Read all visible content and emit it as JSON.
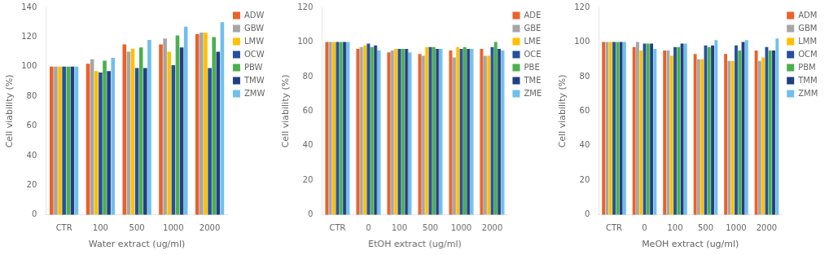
{
  "chart_data": [
    {
      "type": "bar",
      "xlabel": "Water extract (ug/ml)",
      "ylabel": "Cell viability (%)",
      "categories": [
        "CTR",
        "100",
        "500",
        "1000",
        "2000"
      ],
      "series": [
        {
          "name": "ADW",
          "color": "#E8622A",
          "values": [
            100,
            102,
            115,
            115,
            122
          ]
        },
        {
          "name": "GBW",
          "color": "#A6A6A6",
          "values": [
            100,
            105,
            110,
            119,
            123
          ]
        },
        {
          "name": "LMW",
          "color": "#FFC000",
          "values": [
            100,
            97,
            112,
            110,
            123
          ]
        },
        {
          "name": "OCW",
          "color": "#264F9C",
          "values": [
            100,
            96,
            99,
            101,
            99
          ]
        },
        {
          "name": "PBW",
          "color": "#4BAF4E",
          "values": [
            100,
            104,
            113,
            121,
            120
          ]
        },
        {
          "name": "TMW",
          "color": "#1F3F80",
          "values": [
            100,
            97,
            99,
            113,
            110
          ]
        },
        {
          "name": "ZMW",
          "color": "#70BFED",
          "values": [
            100,
            106,
            118,
            127,
            130
          ]
        }
      ],
      "ylim": [
        0,
        140
      ],
      "yticks": [
        0,
        20,
        40,
        60,
        80,
        100,
        120,
        140
      ],
      "grid": false,
      "legend": "right"
    },
    {
      "type": "bar",
      "xlabel": "EtOH extract (ug/ml)",
      "ylabel": "Cell viability (%)",
      "categories": [
        "CTR",
        "0",
        "100",
        "500",
        "1000",
        "2000"
      ],
      "series": [
        {
          "name": "ADE",
          "color": "#E8622A",
          "values": [
            100,
            96,
            94,
            93,
            95,
            96
          ]
        },
        {
          "name": "GBE",
          "color": "#A6A6A6",
          "values": [
            100,
            97,
            95,
            92,
            91,
            92
          ]
        },
        {
          "name": "LME",
          "color": "#FFC000",
          "values": [
            100,
            98,
            96,
            97,
            97,
            92
          ]
        },
        {
          "name": "OCE",
          "color": "#264F9C",
          "values": [
            100,
            99,
            96,
            97,
            96,
            97
          ]
        },
        {
          "name": "PBE",
          "color": "#4BAF4E",
          "values": [
            100,
            97,
            96,
            97,
            97,
            100
          ]
        },
        {
          "name": "TME",
          "color": "#1F3F80",
          "values": [
            100,
            98,
            96,
            96,
            96,
            96
          ]
        },
        {
          "name": "ZME",
          "color": "#70BFED",
          "values": [
            100,
            95,
            94,
            96,
            96,
            95
          ]
        }
      ],
      "ylim": [
        0,
        120
      ],
      "yticks": [
        0,
        20,
        40,
        60,
        80,
        100,
        120
      ],
      "grid": false,
      "legend": "right"
    },
    {
      "type": "bar",
      "xlabel": "MeOH extract (ug/ml)",
      "ylabel": "Cell viability (%)",
      "categories": [
        "CTR",
        "0",
        "100",
        "500",
        "1000",
        "2000"
      ],
      "series": [
        {
          "name": "ADM",
          "color": "#E8622A",
          "values": [
            100,
            97,
            95,
            93,
            93,
            95
          ]
        },
        {
          "name": "GBM",
          "color": "#A6A6A6",
          "values": [
            100,
            100,
            95,
            90,
            89,
            89
          ]
        },
        {
          "name": "LMM",
          "color": "#FFC000",
          "values": [
            100,
            95,
            92,
            90,
            89,
            91
          ]
        },
        {
          "name": "OCM",
          "color": "#264F9C",
          "values": [
            100,
            99,
            97,
            98,
            98,
            97
          ]
        },
        {
          "name": "PBM",
          "color": "#4BAF4E",
          "values": [
            100,
            99,
            97,
            97,
            95,
            95
          ]
        },
        {
          "name": "TMM",
          "color": "#1F3F80",
          "values": [
            100,
            99,
            99,
            98,
            100,
            95
          ]
        },
        {
          "name": "ZMM",
          "color": "#70BFED",
          "values": [
            100,
            96,
            99,
            101,
            101,
            102
          ]
        }
      ],
      "ylim": [
        0,
        120
      ],
      "yticks": [
        0,
        20,
        40,
        60,
        80,
        100,
        120
      ],
      "grid": false,
      "legend": "right"
    }
  ]
}
